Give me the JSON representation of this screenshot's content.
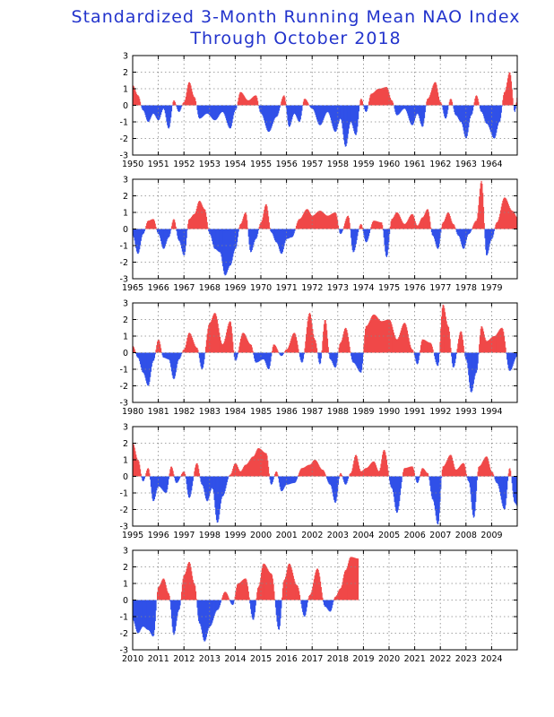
{
  "title_line1": "Standardized 3-Month Running Mean NAO Index",
  "title_line2": "Through October 2018",
  "colors": {
    "positive": "#f04848",
    "negative": "#3050e8",
    "title": "#2233cc",
    "grid": "#888888"
  },
  "chart_data": [
    {
      "type": "area",
      "start_year": 1950,
      "tick_labels": [
        "1950",
        "1951",
        "1952",
        "1953",
        "1954",
        "1955",
        "1956",
        "1957",
        "1958",
        "1959",
        "1960",
        "1961",
        "1962",
        "1963",
        "1964"
      ],
      "ylim": [
        -3,
        3
      ],
      "yticks": [
        "3",
        "2",
        "1",
        "0",
        "-1",
        "-2",
        "-3"
      ],
      "grid": true,
      "anchors": [
        [
          1950.0,
          1.2
        ],
        [
          1950.2,
          0.6
        ],
        [
          1950.4,
          -0.3
        ],
        [
          1950.6,
          -1.0
        ],
        [
          1950.8,
          -0.5
        ],
        [
          1951.0,
          -0.9
        ],
        [
          1951.2,
          -0.2
        ],
        [
          1951.4,
          -1.4
        ],
        [
          1951.6,
          0.3
        ],
        [
          1951.8,
          -0.4
        ],
        [
          1952.0,
          0.2
        ],
        [
          1952.2,
          1.4
        ],
        [
          1952.4,
          0.5
        ],
        [
          1952.6,
          -0.8
        ],
        [
          1952.9,
          -0.5
        ],
        [
          1953.2,
          -0.9
        ],
        [
          1953.5,
          -0.4
        ],
        [
          1953.8,
          -1.4
        ],
        [
          1954.0,
          -0.3
        ],
        [
          1954.2,
          0.8
        ],
        [
          1954.5,
          0.3
        ],
        [
          1954.8,
          0.6
        ],
        [
          1955.0,
          -0.5
        ],
        [
          1955.3,
          -1.6
        ],
        [
          1955.6,
          -0.7
        ],
        [
          1955.9,
          0.6
        ],
        [
          1956.1,
          -1.3
        ],
        [
          1956.3,
          -0.5
        ],
        [
          1956.5,
          -1.0
        ],
        [
          1956.7,
          0.4
        ],
        [
          1957.0,
          -0.2
        ],
        [
          1957.3,
          -1.2
        ],
        [
          1957.6,
          -0.4
        ],
        [
          1957.9,
          -1.6
        ],
        [
          1958.1,
          -0.8
        ],
        [
          1958.3,
          -2.5
        ],
        [
          1958.5,
          -1.0
        ],
        [
          1958.7,
          -1.8
        ],
        [
          1958.9,
          0.4
        ],
        [
          1959.1,
          -0.4
        ],
        [
          1959.3,
          0.7
        ],
        [
          1959.6,
          1.0
        ],
        [
          1959.9,
          1.1
        ],
        [
          1960.1,
          0.3
        ],
        [
          1960.3,
          -0.6
        ],
        [
          1960.6,
          -0.2
        ],
        [
          1960.9,
          -1.2
        ],
        [
          1961.1,
          -0.5
        ],
        [
          1961.3,
          -1.3
        ],
        [
          1961.5,
          0.4
        ],
        [
          1961.8,
          1.4
        ],
        [
          1962.0,
          0.2
        ],
        [
          1962.2,
          -0.8
        ],
        [
          1962.4,
          0.4
        ],
        [
          1962.6,
          -0.6
        ],
        [
          1962.8,
          -1.0
        ],
        [
          1963.0,
          -2.0
        ],
        [
          1963.2,
          -0.6
        ],
        [
          1963.4,
          0.6
        ],
        [
          1963.6,
          -0.4
        ],
        [
          1963.8,
          -1.1
        ],
        [
          1964.1,
          -2.0
        ],
        [
          1964.3,
          -1.0
        ],
        [
          1964.5,
          0.8
        ],
        [
          1964.7,
          2.0
        ],
        [
          1964.9,
          -0.4
        ],
        [
          1965.0,
          0.5
        ]
      ]
    },
    {
      "type": "area",
      "start_year": 1965,
      "tick_labels": [
        "1965",
        "1966",
        "1967",
        "1968",
        "1969",
        "1970",
        "1971",
        "1972",
        "1973",
        "1974",
        "1975",
        "1976",
        "1977",
        "1978",
        "1979"
      ],
      "ylim": [
        -3,
        3
      ],
      "yticks": [
        "3",
        "2",
        "1",
        "0",
        "-1",
        "-2",
        "-3"
      ],
      "grid": true,
      "anchors": [
        [
          1965.0,
          -0.4
        ],
        [
          1965.2,
          -1.5
        ],
        [
          1965.4,
          -0.3
        ],
        [
          1965.6,
          0.5
        ],
        [
          1965.8,
          0.6
        ],
        [
          1966.0,
          -0.3
        ],
        [
          1966.2,
          -1.2
        ],
        [
          1966.4,
          -0.5
        ],
        [
          1966.6,
          0.6
        ],
        [
          1966.8,
          -0.7
        ],
        [
          1967.0,
          -1.6
        ],
        [
          1967.2,
          0.6
        ],
        [
          1967.4,
          0.9
        ],
        [
          1967.6,
          1.7
        ],
        [
          1967.8,
          1.2
        ],
        [
          1968.0,
          -0.3
        ],
        [
          1968.2,
          -1.2
        ],
        [
          1968.4,
          -1.4
        ],
        [
          1968.6,
          -2.8
        ],
        [
          1968.8,
          -2.2
        ],
        [
          1969.0,
          -1.2
        ],
        [
          1969.2,
          0.3
        ],
        [
          1969.4,
          1.0
        ],
        [
          1969.6,
          -1.4
        ],
        [
          1969.8,
          -0.6
        ],
        [
          1970.0,
          0.4
        ],
        [
          1970.2,
          1.5
        ],
        [
          1970.4,
          -0.2
        ],
        [
          1970.6,
          -0.8
        ],
        [
          1970.8,
          -1.5
        ],
        [
          1971.0,
          -0.6
        ],
        [
          1971.2,
          -0.5
        ],
        [
          1971.5,
          0.6
        ],
        [
          1971.8,
          1.2
        ],
        [
          1972.0,
          0.8
        ],
        [
          1972.3,
          1.1
        ],
        [
          1972.6,
          0.8
        ],
        [
          1972.9,
          1.0
        ],
        [
          1973.1,
          -0.3
        ],
        [
          1973.4,
          0.8
        ],
        [
          1973.6,
          -1.4
        ],
        [
          1973.9,
          0.3
        ],
        [
          1974.1,
          -0.8
        ],
        [
          1974.4,
          0.5
        ],
        [
          1974.7,
          0.4
        ],
        [
          1974.9,
          -1.7
        ],
        [
          1975.1,
          0.6
        ],
        [
          1975.3,
          1.0
        ],
        [
          1975.6,
          0.3
        ],
        [
          1975.9,
          0.9
        ],
        [
          1976.1,
          0.2
        ],
        [
          1976.3,
          0.7
        ],
        [
          1976.5,
          1.2
        ],
        [
          1976.7,
          -0.4
        ],
        [
          1976.9,
          -1.2
        ],
        [
          1977.1,
          0.4
        ],
        [
          1977.3,
          1.0
        ],
        [
          1977.5,
          0.3
        ],
        [
          1977.7,
          -0.4
        ],
        [
          1977.9,
          -1.2
        ],
        [
          1978.1,
          -0.3
        ],
        [
          1978.4,
          0.5
        ],
        [
          1978.6,
          2.9
        ],
        [
          1978.8,
          -1.6
        ],
        [
          1979.0,
          -0.6
        ],
        [
          1979.2,
          0.4
        ],
        [
          1979.5,
          1.9
        ],
        [
          1979.8,
          1.1
        ],
        [
          1980.0,
          0.7
        ]
      ]
    },
    {
      "type": "area",
      "start_year": 1980,
      "tick_labels": [
        "1980",
        "1981",
        "1982",
        "1983",
        "1984",
        "1985",
        "1986",
        "1987",
        "1988",
        "1989",
        "1990",
        "1991",
        "1992",
        "1993",
        "1994"
      ],
      "ylim": [
        -3,
        3
      ],
      "yticks": [
        "3",
        "2",
        "1",
        "0",
        "-1",
        "-2",
        "-3"
      ],
      "grid": true,
      "anchors": [
        [
          1980.0,
          0.4
        ],
        [
          1980.2,
          -0.3
        ],
        [
          1980.4,
          -1.2
        ],
        [
          1980.6,
          -2.0
        ],
        [
          1980.8,
          -0.5
        ],
        [
          1981.0,
          0.8
        ],
        [
          1981.2,
          -0.3
        ],
        [
          1981.4,
          -0.4
        ],
        [
          1981.6,
          -1.6
        ],
        [
          1981.8,
          -0.4
        ],
        [
          1982.0,
          0.2
        ],
        [
          1982.2,
          1.2
        ],
        [
          1982.5,
          0.3
        ],
        [
          1982.7,
          -1.0
        ],
        [
          1983.0,
          1.8
        ],
        [
          1983.2,
          2.4
        ],
        [
          1983.5,
          0.5
        ],
        [
          1983.8,
          1.9
        ],
        [
          1984.0,
          -0.5
        ],
        [
          1984.3,
          1.2
        ],
        [
          1984.6,
          0.5
        ],
        [
          1984.8,
          -0.6
        ],
        [
          1985.1,
          -0.4
        ],
        [
          1985.3,
          -1.0
        ],
        [
          1985.5,
          0.5
        ],
        [
          1985.8,
          -0.2
        ],
        [
          1986.0,
          0.2
        ],
        [
          1986.3,
          1.2
        ],
        [
          1986.6,
          -0.6
        ],
        [
          1986.9,
          2.4
        ],
        [
          1987.1,
          0.8
        ],
        [
          1987.3,
          -0.7
        ],
        [
          1987.5,
          2.0
        ],
        [
          1987.7,
          -0.4
        ],
        [
          1987.9,
          -0.9
        ],
        [
          1988.1,
          0.6
        ],
        [
          1988.3,
          1.5
        ],
        [
          1988.6,
          -0.6
        ],
        [
          1988.9,
          -1.2
        ],
        [
          1989.1,
          1.6
        ],
        [
          1989.4,
          2.3
        ],
        [
          1989.7,
          1.9
        ],
        [
          1990.0,
          2.0
        ],
        [
          1990.3,
          0.8
        ],
        [
          1990.6,
          1.8
        ],
        [
          1990.9,
          0.2
        ],
        [
          1991.1,
          -0.7
        ],
        [
          1991.3,
          0.8
        ],
        [
          1991.6,
          0.6
        ],
        [
          1991.9,
          -0.8
        ],
        [
          1992.1,
          2.9
        ],
        [
          1992.3,
          1.6
        ],
        [
          1992.5,
          -0.9
        ],
        [
          1992.8,
          1.3
        ],
        [
          1993.0,
          -0.4
        ],
        [
          1993.2,
          -2.4
        ],
        [
          1993.4,
          -1.2
        ],
        [
          1993.6,
          1.6
        ],
        [
          1993.8,
          0.7
        ],
        [
          1994.1,
          1.0
        ],
        [
          1994.4,
          1.5
        ],
        [
          1994.7,
          -1.1
        ],
        [
          1995.0,
          -0.2
        ]
      ]
    },
    {
      "type": "area",
      "start_year": 1995,
      "tick_labels": [
        "1995",
        "1996",
        "1997",
        "1998",
        "1999",
        "2000",
        "2001",
        "2002",
        "2003",
        "2004",
        "2005",
        "2006",
        "2007",
        "2008",
        "2009"
      ],
      "ylim": [
        -3,
        3
      ],
      "yticks": [
        "3",
        "2",
        "1",
        "0",
        "-1",
        "-2",
        "-3"
      ],
      "grid": true,
      "anchors": [
        [
          1995.0,
          2.0
        ],
        [
          1995.2,
          1.0
        ],
        [
          1995.4,
          -0.3
        ],
        [
          1995.6,
          0.5
        ],
        [
          1995.8,
          -1.5
        ],
        [
          1996.0,
          -0.6
        ],
        [
          1996.3,
          -1.0
        ],
        [
          1996.5,
          0.6
        ],
        [
          1996.7,
          -0.4
        ],
        [
          1997.0,
          0.3
        ],
        [
          1997.2,
          -1.3
        ],
        [
          1997.5,
          0.8
        ],
        [
          1997.7,
          -0.5
        ],
        [
          1997.9,
          -1.5
        ],
        [
          1998.1,
          -0.7
        ],
        [
          1998.3,
          -2.8
        ],
        [
          1998.5,
          -1.2
        ],
        [
          1998.8,
          0.1
        ],
        [
          1999.0,
          0.8
        ],
        [
          1999.2,
          0.3
        ],
        [
          1999.4,
          0.7
        ],
        [
          1999.7,
          1.2
        ],
        [
          1999.9,
          1.7
        ],
        [
          2000.2,
          1.4
        ],
        [
          2000.4,
          -0.5
        ],
        [
          2000.6,
          0.3
        ],
        [
          2000.8,
          -0.9
        ],
        [
          2001.0,
          -0.5
        ],
        [
          2001.3,
          -0.4
        ],
        [
          2001.6,
          0.5
        ],
        [
          2001.9,
          0.7
        ],
        [
          2002.1,
          1.0
        ],
        [
          2002.4,
          0.4
        ],
        [
          2002.7,
          -0.5
        ],
        [
          2002.9,
          -1.6
        ],
        [
          2003.1,
          0.2
        ],
        [
          2003.3,
          -0.5
        ],
        [
          2003.5,
          0.2
        ],
        [
          2003.7,
          1.3
        ],
        [
          2003.9,
          0.3
        ],
        [
          2004.1,
          0.5
        ],
        [
          2004.4,
          0.9
        ],
        [
          2004.6,
          0.3
        ],
        [
          2004.8,
          1.6
        ],
        [
          2005.1,
          -0.7
        ],
        [
          2005.3,
          -2.2
        ],
        [
          2005.6,
          0.5
        ],
        [
          2005.9,
          0.6
        ],
        [
          2006.1,
          -0.4
        ],
        [
          2006.3,
          0.5
        ],
        [
          2006.5,
          0.2
        ],
        [
          2006.7,
          -1.4
        ],
        [
          2006.9,
          -2.9
        ],
        [
          2007.1,
          0.6
        ],
        [
          2007.4,
          1.3
        ],
        [
          2007.6,
          0.4
        ],
        [
          2007.9,
          0.8
        ],
        [
          2008.1,
          -0.3
        ],
        [
          2008.3,
          -2.5
        ],
        [
          2008.5,
          0.6
        ],
        [
          2008.8,
          1.2
        ],
        [
          2009.0,
          0.3
        ],
        [
          2009.2,
          -0.4
        ],
        [
          2009.5,
          -2.0
        ],
        [
          2009.7,
          0.5
        ],
        [
          2009.9,
          -1.6
        ],
        [
          2010.0,
          -1.8
        ]
      ]
    },
    {
      "type": "area",
      "start_year": 2010,
      "tick_labels": [
        "2010",
        "2011",
        "2012",
        "2013",
        "2014",
        "2015",
        "2016",
        "2017",
        "2018",
        "2019",
        "2020",
        "2021",
        "2022",
        "2023",
        "2024"
      ],
      "ylim": [
        -3,
        3
      ],
      "yticks": [
        "3",
        "2",
        "1",
        "0",
        "-1",
        "-2",
        "-3"
      ],
      "grid": true,
      "anchors": [
        [
          2010.0,
          -1.2
        ],
        [
          2010.2,
          -2.0
        ],
        [
          2010.4,
          -1.6
        ],
        [
          2010.6,
          -1.8
        ],
        [
          2010.8,
          -2.2
        ],
        [
          2011.0,
          0.8
        ],
        [
          2011.2,
          1.3
        ],
        [
          2011.4,
          0.4
        ],
        [
          2011.6,
          -2.1
        ],
        [
          2011.8,
          -0.6
        ],
        [
          2012.0,
          1.5
        ],
        [
          2012.2,
          2.3
        ],
        [
          2012.4,
          1.0
        ],
        [
          2012.6,
          -1.4
        ],
        [
          2012.8,
          -2.5
        ],
        [
          2013.0,
          -1.6
        ],
        [
          2013.3,
          -0.6
        ],
        [
          2013.6,
          0.5
        ],
        [
          2013.9,
          -0.3
        ],
        [
          2014.1,
          1.0
        ],
        [
          2014.4,
          1.3
        ],
        [
          2014.7,
          -1.2
        ],
        [
          2014.9,
          0.8
        ],
        [
          2015.1,
          2.2
        ],
        [
          2015.4,
          1.6
        ],
        [
          2015.7,
          -1.8
        ],
        [
          2015.9,
          1.2
        ],
        [
          2016.1,
          2.2
        ],
        [
          2016.4,
          0.9
        ],
        [
          2016.7,
          -1.0
        ],
        [
          2016.9,
          0.3
        ],
        [
          2017.2,
          1.9
        ],
        [
          2017.5,
          -0.4
        ],
        [
          2017.7,
          -0.7
        ],
        [
          2017.9,
          0.2
        ],
        [
          2018.1,
          0.7
        ],
        [
          2018.3,
          1.8
        ],
        [
          2018.5,
          2.6
        ],
        [
          2018.8,
          2.5
        ]
      ]
    }
  ]
}
